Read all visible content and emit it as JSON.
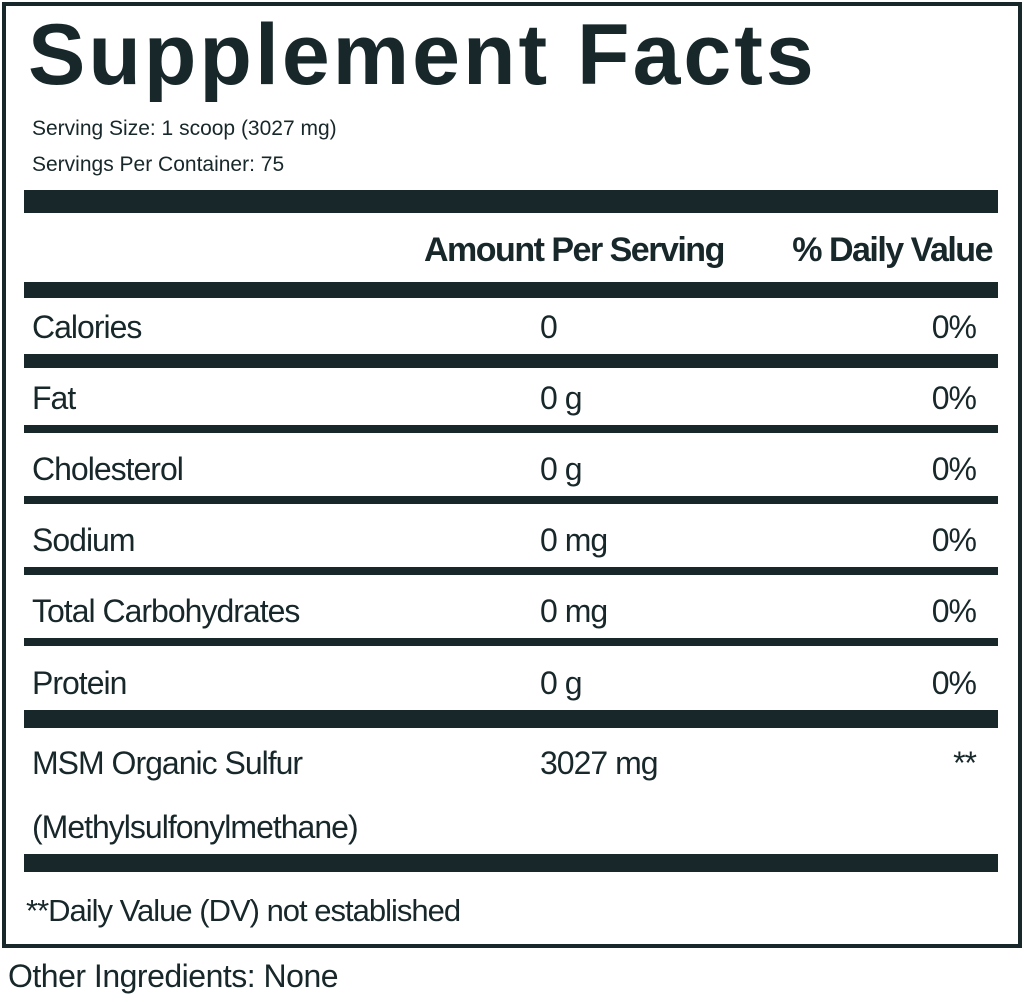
{
  "title": "Supplement Facts",
  "serving_size": "Serving Size: 1 scoop (3027 mg)",
  "servings_per_container": "Servings Per Container: 75",
  "table": {
    "header": [
      "Amount Per Serving",
      "% Daily Value"
    ],
    "rows": [
      {
        "name": [
          "Calories"
        ],
        "amount": "0",
        "daily_value": "0%"
      },
      {
        "name": [
          "Fat"
        ],
        "amount": "0 g",
        "daily_value": "0%"
      },
      {
        "name": [
          "Cholesterol"
        ],
        "amount": "0 g",
        "daily_value": "0%"
      },
      {
        "name": [
          "Sodium"
        ],
        "amount": "0 mg",
        "daily_value": "0%"
      },
      {
        "name": [
          "Total Carbohydrates"
        ],
        "amount": "0 mg",
        "daily_value": "0%"
      },
      {
        "name": [
          "Protein"
        ],
        "amount": "0 g",
        "daily_value": "0%"
      },
      {
        "name": [
          "MSM Organic Sulfur",
          "(Methylsulfonylmethane)"
        ],
        "amount": "3027 mg",
        "daily_value": "**"
      }
    ]
  },
  "footnote": "**Daily Value (DV) not established",
  "other_ingredients": "Other Ingredients: None"
}
